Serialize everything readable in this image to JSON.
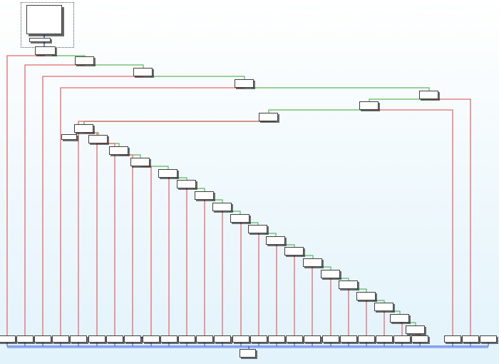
{
  "view": {
    "name": "function-graph-overview",
    "background_top": "#ffffff",
    "background_bottom": "#e2f3fb"
  },
  "edge_colors": {
    "taken": "#5cb85c",
    "not_taken": "#e8696b",
    "unconditional": "#2244dd"
  },
  "blocks": {
    "count": 51,
    "labels_visible": false
  }
}
